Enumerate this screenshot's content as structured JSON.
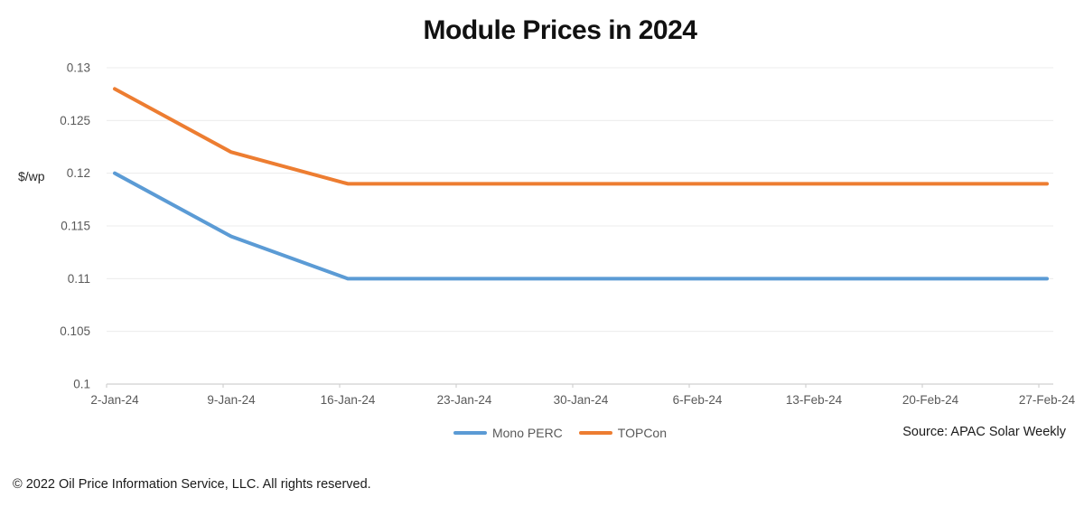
{
  "chart_data": {
    "type": "line",
    "title": "Module Prices in 2024",
    "ylabel": "$/wp",
    "xlabel": "",
    "categories": [
      "2-Jan-24",
      "9-Jan-24",
      "16-Jan-24",
      "23-Jan-24",
      "30-Jan-24",
      "6-Feb-24",
      "13-Feb-24",
      "20-Feb-24",
      "27-Feb-24"
    ],
    "series": [
      {
        "name": "Mono PERC",
        "color": "#5B9BD5",
        "values": [
          0.12,
          0.114,
          0.11,
          0.11,
          0.11,
          0.11,
          0.11,
          0.11,
          0.11
        ]
      },
      {
        "name": "TOPCon",
        "color": "#ED7D31",
        "values": [
          0.128,
          0.122,
          0.119,
          0.119,
          0.119,
          0.119,
          0.119,
          0.119,
          0.119
        ]
      }
    ],
    "ylim": [
      0.1,
      0.13
    ],
    "ytick_step": 0.005,
    "ytick_labels": [
      "0.1",
      "0.105",
      "0.11",
      "0.115",
      "0.12",
      "0.125",
      "0.13"
    ],
    "grid": true,
    "legend_position": "bottom",
    "gridline_color": "#ECECEC",
    "axis_line_color": "#D9D9D9",
    "tick_mark_color": "#C9C9C9",
    "tick_label_color": "#595959",
    "line_width": 4
  },
  "annotations": {
    "source": "Source: APAC Solar Weekly",
    "copyright": "© 2022 Oil Price Information Service, LLC. All rights reserved."
  }
}
